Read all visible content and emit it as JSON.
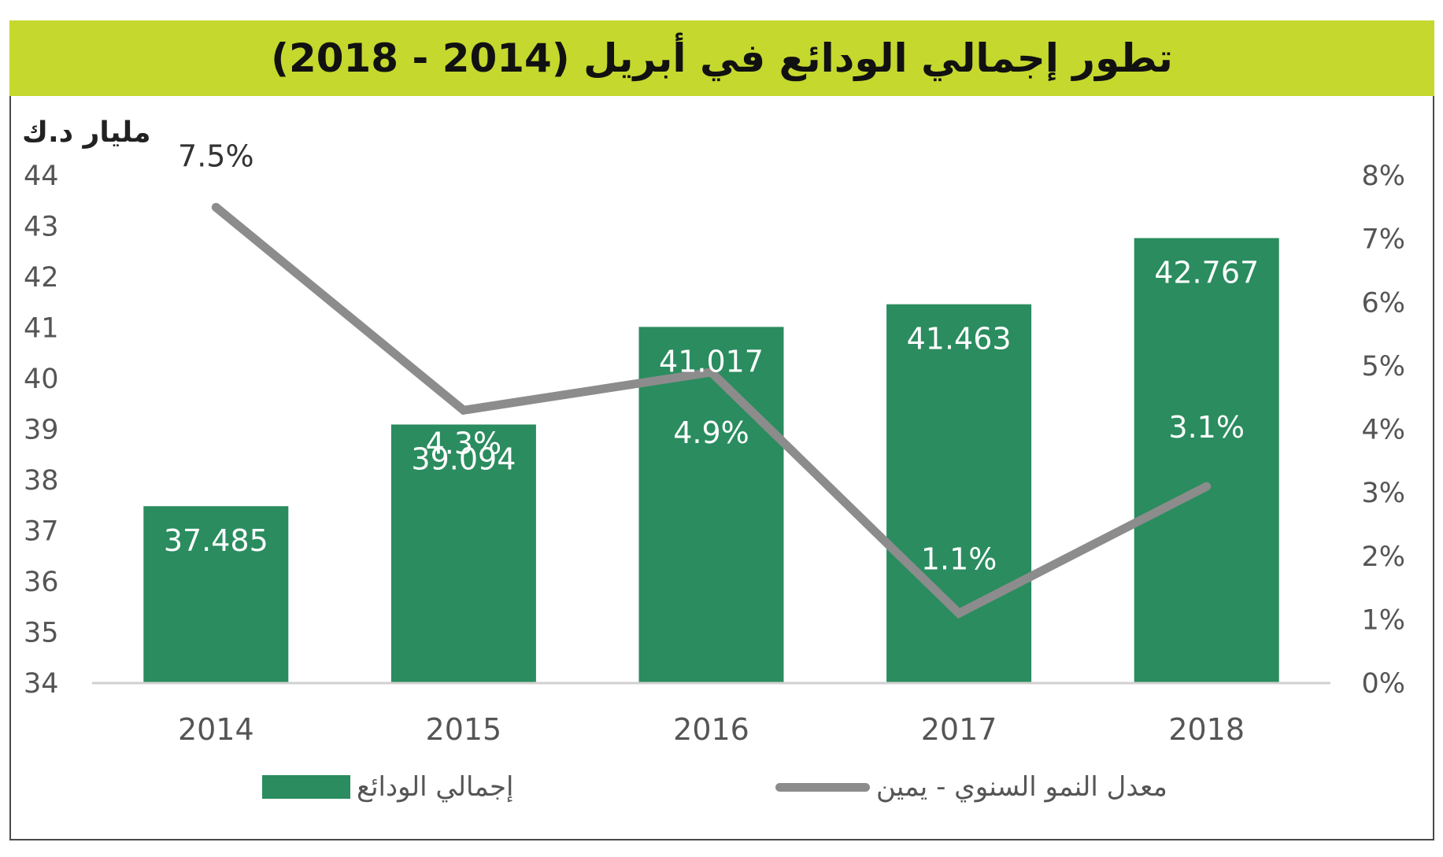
{
  "title": "تطور إجمالي الودائع في أبريل (2014 - 2018)",
  "colors": {
    "title_bg": "#c4d82e",
    "bar": "#2a8c5f",
    "line": "#8c8c8c",
    "axis": "#d0d0d0"
  },
  "chart_data": {
    "type": "bar",
    "unit_label": "مليار د.ك",
    "categories": [
      "2014",
      "2015",
      "2016",
      "2017",
      "2018"
    ],
    "series": [
      {
        "name": "إجمالي الودائع",
        "type": "bar",
        "axis": "left",
        "values": [
          37.485,
          39.094,
          41.017,
          41.463,
          42.767
        ],
        "labels": [
          "37.485",
          "39.094",
          "41.017",
          "41.463",
          "42.767"
        ]
      },
      {
        "name": "معدل النمو السنوي - يمين",
        "type": "line",
        "axis": "right",
        "values": [
          7.5,
          4.3,
          4.9,
          1.1,
          3.1
        ],
        "labels": [
          "7.5%",
          "4.3%",
          "4.9%",
          "1.1%",
          "3.1%"
        ]
      }
    ],
    "y_left": {
      "min": 34,
      "max": 44,
      "ticks": [
        "34",
        "35",
        "36",
        "37",
        "38",
        "39",
        "40",
        "41",
        "42",
        "43",
        "44"
      ]
    },
    "y_right": {
      "min": 0,
      "max": 8,
      "ticks": [
        "0%",
        "1%",
        "2%",
        "3%",
        "4%",
        "5%",
        "6%",
        "7%",
        "8%"
      ]
    },
    "grid": false,
    "legend_position": "bottom"
  }
}
